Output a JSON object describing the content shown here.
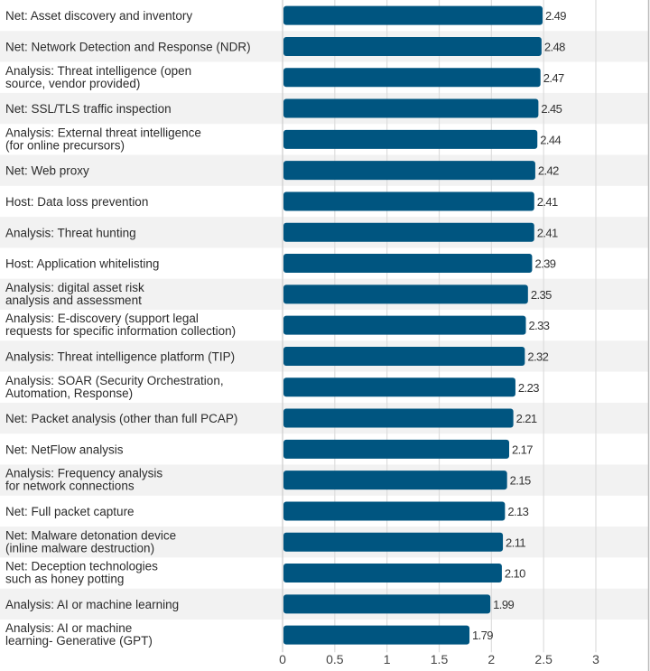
{
  "chart_data": {
    "type": "bar",
    "orientation": "horizontal",
    "title": "",
    "xlabel": "",
    "ylabel": "",
    "xlim": [
      0,
      3
    ],
    "xticks": [
      0,
      0.5,
      1,
      1.5,
      2,
      2.5,
      3
    ],
    "xtick_labels": [
      "0",
      "0.5",
      "1",
      "1.5",
      "2",
      "2.5",
      "3"
    ],
    "grid": "vertical",
    "legend": "none",
    "colors": {
      "bar": "#005580",
      "band": "#f2f2f2",
      "grid": "#dddddd"
    },
    "categories": [
      [
        "Net: Asset discovery and inventory"
      ],
      [
        "Net: Network Detection and Response (NDR)"
      ],
      [
        "Analysis: Threat intelligence (open",
        "source, vendor provided)"
      ],
      [
        "Net: SSL/TLS traffic inspection"
      ],
      [
        "Analysis: External threat intelligence",
        "(for online precursors)"
      ],
      [
        "Net: Web proxy"
      ],
      [
        "Host: Data loss prevention"
      ],
      [
        "Analysis: Threat hunting"
      ],
      [
        "Host: Application whitelisting"
      ],
      [
        "Analysis: digital asset risk",
        "analysis and assessment"
      ],
      [
        "Analysis: E-discovery (support legal",
        "requests for specific information collection)"
      ],
      [
        "Analysis: Threat intelligence platform (TIP)"
      ],
      [
        "Analysis: SOAR (Security Orchestration,",
        "Automation, Response)"
      ],
      [
        "Net: Packet analysis (other than full PCAP)"
      ],
      [
        "Net: NetFlow analysis"
      ],
      [
        "Analysis: Frequency analysis",
        "for network connections"
      ],
      [
        "Net: Full packet capture"
      ],
      [
        "Net: Malware detonation device",
        "(inline malware destruction)"
      ],
      [
        "Net: Deception technologies",
        "such as honey potting"
      ],
      [
        "Analysis: AI or machine learning"
      ],
      [
        "Analysis: AI or machine",
        "learning- Generative (GPT)"
      ]
    ],
    "values": [
      2.49,
      2.48,
      2.47,
      2.45,
      2.44,
      2.42,
      2.41,
      2.41,
      2.39,
      2.35,
      2.33,
      2.32,
      2.23,
      2.21,
      2.17,
      2.15,
      2.13,
      2.11,
      2.1,
      1.99,
      1.79
    ],
    "value_labels": [
      "2.49",
      "2.48",
      "2.47",
      "2.45",
      "2.44",
      "2.42",
      "2.41",
      "2.41",
      "2.39",
      "2.35",
      "2.33",
      "2.32",
      "2.23",
      "2.21",
      "2.17",
      "2.15",
      "2.13",
      "2.11",
      "2.10",
      "1.99",
      "1.79"
    ]
  }
}
